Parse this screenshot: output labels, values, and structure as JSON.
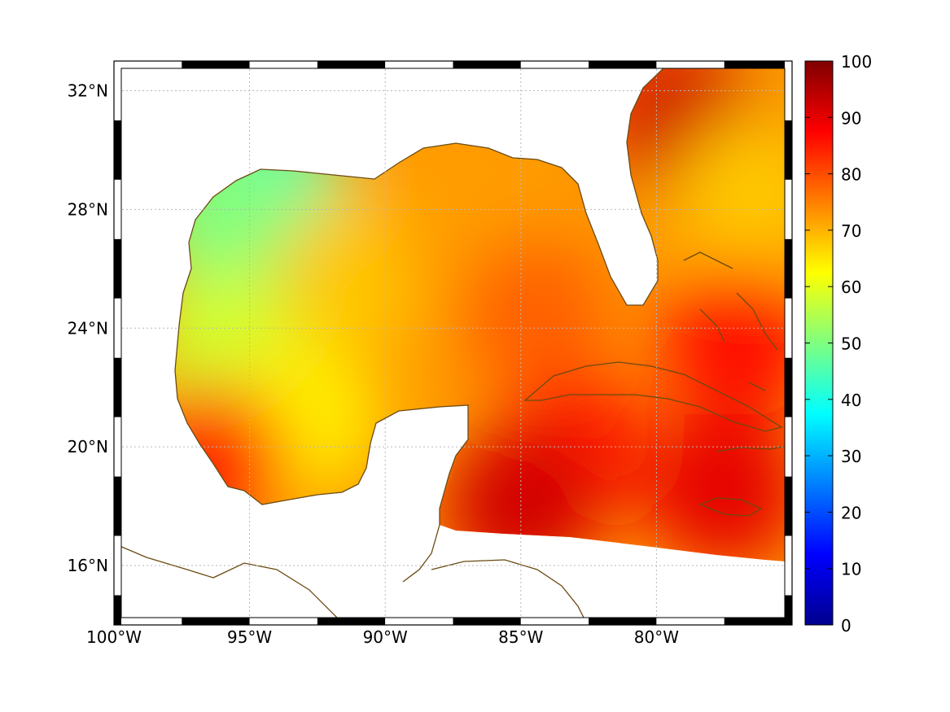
{
  "map": {
    "lon_range": [
      -100,
      -75
    ],
    "lat_range": [
      14,
      33
    ],
    "lon_ticks": [
      {
        "value": -100,
        "label": "100°W"
      },
      {
        "value": -95,
        "label": "95°W"
      },
      {
        "value": -90,
        "label": "90°W"
      },
      {
        "value": -85,
        "label": "85°W"
      },
      {
        "value": -80,
        "label": "80°W"
      }
    ],
    "lat_ticks": [
      {
        "value": 16,
        "label": "16°N"
      },
      {
        "value": 20,
        "label": "20°N"
      },
      {
        "value": 24,
        "label": "24°N"
      },
      {
        "value": 28,
        "label": "28°N"
      },
      {
        "value": 32,
        "label": "32°N"
      }
    ],
    "grid": true,
    "coastline_color": "#6b4a12"
  },
  "colorbar": {
    "min": 0,
    "max": 100,
    "ticks": [
      "0",
      "10",
      "20",
      "30",
      "40",
      "50",
      "60",
      "70",
      "80",
      "90",
      "100"
    ],
    "colormap": "jet"
  },
  "field_regions": [
    {
      "lon": -94.5,
      "lat": 29.0,
      "value": 45
    },
    {
      "lon": -96.0,
      "lat": 27.8,
      "value": 50
    },
    {
      "lon": -96.0,
      "lat": 23.5,
      "value": 58
    },
    {
      "lon": -93.0,
      "lat": 21.0,
      "value": 64
    },
    {
      "lon": -91.0,
      "lat": 26.0,
      "value": 68
    },
    {
      "lon": -87.0,
      "lat": 27.0,
      "value": 72
    },
    {
      "lon": -84.5,
      "lat": 24.5,
      "value": 78
    },
    {
      "lon": -83.0,
      "lat": 20.0,
      "value": 85
    },
    {
      "lon": -85.0,
      "lat": 18.0,
      "value": 92
    },
    {
      "lon": -79.0,
      "lat": 31.0,
      "value": 92
    },
    {
      "lon": -76.5,
      "lat": 28.5,
      "value": 68
    },
    {
      "lon": -77.0,
      "lat": 23.5,
      "value": 86
    },
    {
      "lon": -77.5,
      "lat": 18.5,
      "value": 90
    },
    {
      "lon": -96.5,
      "lat": 19.5,
      "value": 84
    }
  ]
}
